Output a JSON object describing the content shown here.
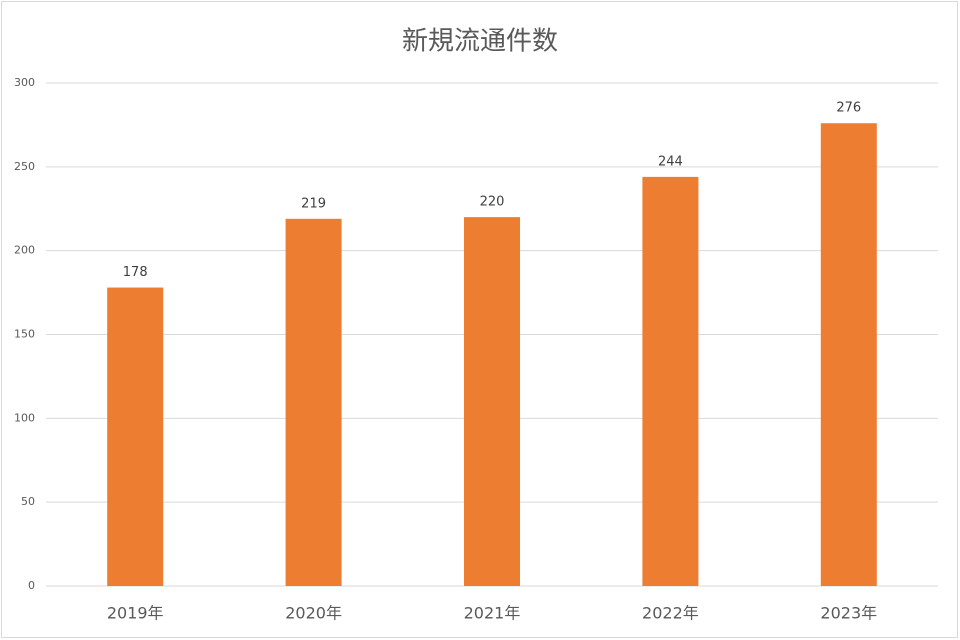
{
  "chart_data": {
    "type": "bar",
    "title": "新規流通件数",
    "categories": [
      "2019年",
      "2020年",
      "2021年",
      "2022年",
      "2023年"
    ],
    "values": [
      178,
      219,
      220,
      244,
      276
    ],
    "color": "#ed7d31",
    "ylim": [
      0,
      300
    ],
    "yticks": [
      0,
      50,
      100,
      150,
      200,
      250,
      300
    ],
    "grid": true
  }
}
